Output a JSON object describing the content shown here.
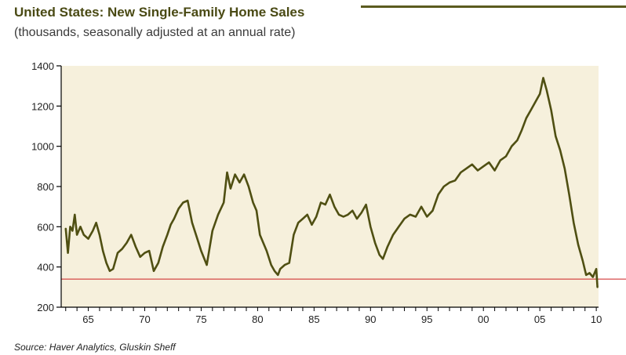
{
  "header": {
    "title": "United States: New Single-Family Home Sales",
    "subtitle": "(thousands, seasonally adjusted at an annual rate)"
  },
  "footer": {
    "source": "Source: Haver Analytics, Gluskin Sheff"
  },
  "colors": {
    "plot_background": "#f6f0dc",
    "series_line": "#4f4f12",
    "reference_line": "#cc1f1f",
    "title_text": "#4a4a14"
  },
  "chart_data": {
    "type": "line",
    "title": "United States: New Single-Family Home Sales",
    "subtitle": "(thousands, seasonally adjusted at an annual rate)",
    "xlabel": "",
    "ylabel": "",
    "xlim": [
      1962.6,
      2010.2
    ],
    "ylim": [
      200,
      1400
    ],
    "x_ticks": [
      1965,
      1970,
      1975,
      1980,
      1985,
      1990,
      1995,
      2000,
      2005,
      2010
    ],
    "x_tick_labels": [
      "65",
      "70",
      "75",
      "80",
      "85",
      "90",
      "95",
      "00",
      "05",
      "10"
    ],
    "y_ticks": [
      200,
      400,
      600,
      800,
      1000,
      1200,
      1400
    ],
    "y_tick_labels": [
      "200",
      "400",
      "600",
      "800",
      "1000",
      "1200",
      "1400"
    ],
    "grid": false,
    "legend": "none",
    "reference_line": {
      "y": 340
    },
    "series": [
      {
        "x": [
          1963.0,
          1963.2,
          1963.4,
          1963.6,
          1963.8,
          1964.0,
          1964.3,
          1964.6,
          1965.0,
          1965.4,
          1965.7,
          1966.0,
          1966.3,
          1966.6,
          1966.9,
          1967.2,
          1967.6,
          1968.0,
          1968.4,
          1968.8,
          1969.2,
          1969.6,
          1970.0,
          1970.4,
          1970.8,
          1971.2,
          1971.6,
          1972.0,
          1972.3,
          1972.6,
          1973.0,
          1973.4,
          1973.8,
          1974.2,
          1974.6,
          1975.0,
          1975.5,
          1976.0,
          1976.5,
          1977.0,
          1977.3,
          1977.6,
          1978.0,
          1978.4,
          1978.8,
          1979.2,
          1979.6,
          1979.9,
          1980.2,
          1980.5,
          1980.8,
          1981.2,
          1981.5,
          1981.8,
          1982.0,
          1982.4,
          1982.8,
          1983.2,
          1983.6,
          1984.0,
          1984.4,
          1984.8,
          1985.2,
          1985.6,
          1986.0,
          1986.4,
          1986.8,
          1987.2,
          1987.6,
          1988.0,
          1988.4,
          1988.8,
          1989.2,
          1989.6,
          1990.0,
          1990.4,
          1990.8,
          1991.1,
          1991.5,
          1992.0,
          1992.5,
          1993.0,
          1993.5,
          1994.0,
          1994.5,
          1995.0,
          1995.5,
          1996.0,
          1996.5,
          1997.0,
          1997.5,
          1998.0,
          1998.5,
          1999.0,
          1999.5,
          2000.0,
          2000.5,
          2001.0,
          2001.5,
          2002.0,
          2002.5,
          2003.0,
          2003.4,
          2003.8,
          2004.2,
          2004.6,
          2005.0,
          2005.3,
          2005.6,
          2006.0,
          2006.4,
          2006.8,
          2007.2,
          2007.6,
          2008.0,
          2008.4,
          2008.8,
          2009.1,
          2009.4,
          2009.7,
          2010.0,
          2010.1
        ],
        "values": [
          590,
          470,
          600,
          580,
          660,
          560,
          600,
          560,
          540,
          580,
          620,
          560,
          480,
          420,
          380,
          390,
          470,
          490,
          520,
          560,
          500,
          450,
          470,
          480,
          380,
          420,
          500,
          560,
          610,
          640,
          690,
          720,
          730,
          620,
          550,
          480,
          410,
          580,
          660,
          720,
          870,
          790,
          860,
          820,
          860,
          800,
          720,
          680,
          560,
          520,
          480,
          410,
          380,
          360,
          390,
          410,
          420,
          560,
          620,
          640,
          660,
          610,
          650,
          720,
          710,
          760,
          700,
          660,
          650,
          660,
          680,
          640,
          670,
          710,
          600,
          520,
          460,
          440,
          500,
          560,
          600,
          640,
          660,
          650,
          700,
          650,
          680,
          760,
          800,
          820,
          830,
          870,
          890,
          910,
          880,
          900,
          920,
          880,
          930,
          950,
          1000,
          1030,
          1080,
          1140,
          1180,
          1220,
          1260,
          1340,
          1280,
          1180,
          1050,
          980,
          890,
          760,
          620,
          510,
          430,
          360,
          370,
          350,
          390,
          300
        ]
      }
    ]
  }
}
